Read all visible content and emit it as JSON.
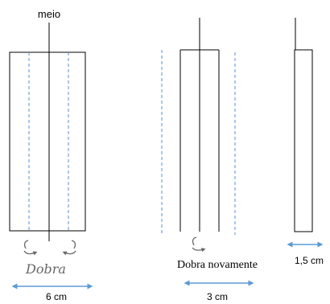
{
  "labels": {
    "meio": "meio",
    "dobra": "Dobra",
    "dobra_novamente": "Dobra novamente",
    "width_1": "6 cm",
    "width_2": "3 cm",
    "width_3": "1,5 cm"
  },
  "colors": {
    "line": "#000000",
    "fold_dashed": "#5b8fd6",
    "arrow": "#5b9bd5",
    "curl_arrow": "#666666"
  }
}
